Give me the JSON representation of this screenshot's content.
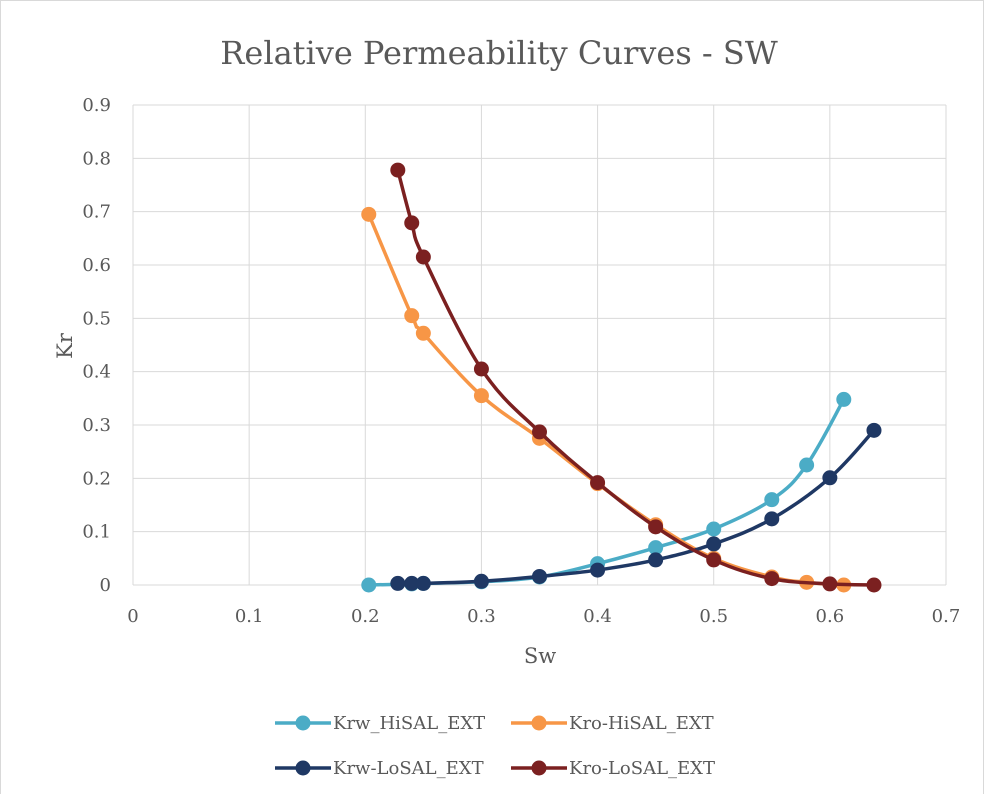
{
  "chart_data": {
    "type": "scatter",
    "title": "Relative Permeability Curves - SW",
    "xlabel": "Sw",
    "ylabel": "Kr",
    "xlim": [
      0,
      0.7
    ],
    "ylim": [
      0,
      0.9
    ],
    "x_ticks": [
      "0",
      "0.1",
      "0.2",
      "0.3",
      "0.4",
      "0.5",
      "0.6",
      "0.7"
    ],
    "y_ticks": [
      "0",
      "0.1",
      "0.2",
      "0.3",
      "0.4",
      "0.5",
      "0.6",
      "0.7",
      "0.8",
      "0.9"
    ],
    "grid": true,
    "legend_position": "bottom",
    "series": [
      {
        "name": "Krw_HiSAL_EXT",
        "color": "#4bacc6",
        "points": [
          [
            0.203,
            0.0
          ],
          [
            0.24,
            0.002
          ],
          [
            0.25,
            0.003
          ],
          [
            0.3,
            0.006
          ],
          [
            0.35,
            0.015
          ],
          [
            0.4,
            0.04
          ],
          [
            0.45,
            0.07
          ],
          [
            0.5,
            0.105
          ],
          [
            0.55,
            0.16
          ],
          [
            0.58,
            0.225
          ],
          [
            0.612,
            0.348
          ]
        ]
      },
      {
        "name": "Kro-HiSAL_EXT",
        "color": "#f79646",
        "points": [
          [
            0.203,
            0.695
          ],
          [
            0.24,
            0.505
          ],
          [
            0.25,
            0.472
          ],
          [
            0.3,
            0.355
          ],
          [
            0.35,
            0.275
          ],
          [
            0.4,
            0.19
          ],
          [
            0.45,
            0.113
          ],
          [
            0.5,
            0.05
          ],
          [
            0.55,
            0.015
          ],
          [
            0.58,
            0.005
          ],
          [
            0.612,
            0.0
          ]
        ]
      },
      {
        "name": "Krw-LoSAL_EXT",
        "color": "#1f3864",
        "points": [
          [
            0.228,
            0.003
          ],
          [
            0.24,
            0.003
          ],
          [
            0.25,
            0.003
          ],
          [
            0.3,
            0.007
          ],
          [
            0.35,
            0.016
          ],
          [
            0.4,
            0.028
          ],
          [
            0.45,
            0.047
          ],
          [
            0.5,
            0.077
          ],
          [
            0.55,
            0.124
          ],
          [
            0.6,
            0.201
          ],
          [
            0.638,
            0.29
          ]
        ]
      },
      {
        "name": "Kro-LoSAL_EXT",
        "color": "#7b2020",
        "points": [
          [
            0.228,
            0.778
          ],
          [
            0.24,
            0.679
          ],
          [
            0.25,
            0.615
          ],
          [
            0.3,
            0.405
          ],
          [
            0.35,
            0.287
          ],
          [
            0.4,
            0.192
          ],
          [
            0.45,
            0.109
          ],
          [
            0.5,
            0.047
          ],
          [
            0.55,
            0.012
          ],
          [
            0.6,
            0.002
          ],
          [
            0.638,
            0.0
          ]
        ]
      }
    ]
  }
}
